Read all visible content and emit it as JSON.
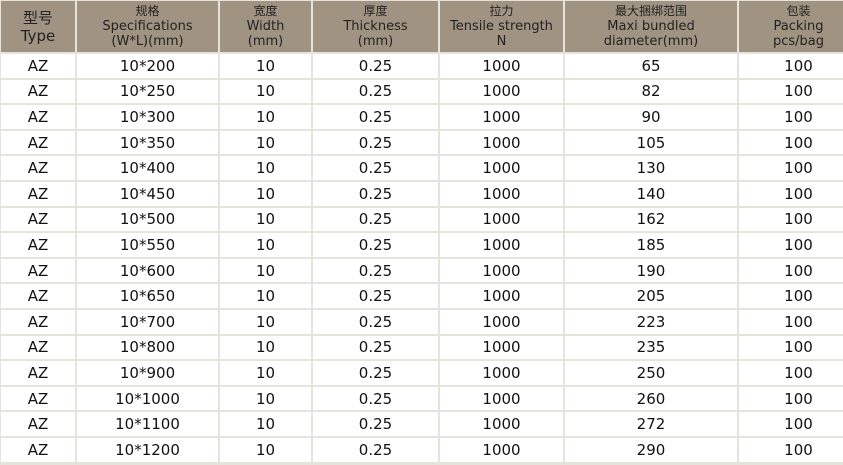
{
  "headers": [
    {
      "cn": "型号",
      "en": [
        "Type"
      ]
    },
    {
      "cn": "规格",
      "en": [
        "Specifications",
        "(W*L)(mm)"
      ]
    },
    {
      "cn": "宽度",
      "en": [
        "Width",
        "(mm)"
      ]
    },
    {
      "cn": "厚度",
      "en": [
        "Thickness",
        "(mm)"
      ]
    },
    {
      "cn": "拉力",
      "en": [
        "Tensile strength",
        "N"
      ]
    },
    {
      "cn": "最大捆绑范围",
      "en": [
        "Maxi bundled",
        "diameter(mm)"
      ]
    },
    {
      "cn": "包装",
      "en": [
        "Packing",
        "pcs/bag"
      ]
    }
  ],
  "rows": [
    [
      "AZ",
      "10*200",
      "10",
      "0.25",
      "1000",
      "65",
      "100"
    ],
    [
      "AZ",
      "10*250",
      "10",
      "0.25",
      "1000",
      "82",
      "100"
    ],
    [
      "AZ",
      "10*300",
      "10",
      "0.25",
      "1000",
      "90",
      "100"
    ],
    [
      "AZ",
      "10*350",
      "10",
      "0.25",
      "1000",
      "105",
      "100"
    ],
    [
      "AZ",
      "10*400",
      "10",
      "0.25",
      "1000",
      "130",
      "100"
    ],
    [
      "AZ",
      "10*450",
      "10",
      "0.25",
      "1000",
      "140",
      "100"
    ],
    [
      "AZ",
      "10*500",
      "10",
      "0.25",
      "1000",
      "162",
      "100"
    ],
    [
      "AZ",
      "10*550",
      "10",
      "0.25",
      "1000",
      "185",
      "100"
    ],
    [
      "AZ",
      "10*600",
      "10",
      "0.25",
      "1000",
      "190",
      "100"
    ],
    [
      "AZ",
      "10*650",
      "10",
      "0.25",
      "1000",
      "205",
      "100"
    ],
    [
      "AZ",
      "10*700",
      "10",
      "0.25",
      "1000",
      "223",
      "100"
    ],
    [
      "AZ",
      "10*800",
      "10",
      "0.25",
      "1000",
      "235",
      "100"
    ],
    [
      "AZ",
      "10*900",
      "10",
      "0.25",
      "1000",
      "250",
      "100"
    ],
    [
      "AZ",
      "10*1000",
      "10",
      "0.25",
      "1000",
      "260",
      "100"
    ],
    [
      "AZ",
      "10*1100",
      "10",
      "0.25",
      "1000",
      "272",
      "100"
    ],
    [
      "AZ",
      "10*1200",
      "10",
      "0.25",
      "1000",
      "290",
      "100"
    ]
  ],
  "colors": {
    "header_bg": "#a09382",
    "cell_bg": "#ffffff",
    "grid": "#e6e2dc"
  }
}
